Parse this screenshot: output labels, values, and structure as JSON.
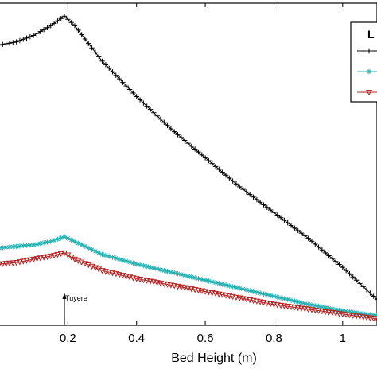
{
  "chart_data": {
    "type": "line",
    "xlabel": "Bed Height (m)",
    "ylabel": "",
    "xlim": [
      0.0,
      1.1
    ],
    "ylim": [
      0.0,
      1.0
    ],
    "x_ticks": [
      0.2,
      0.4,
      0.6,
      0.8,
      1.0
    ],
    "x_tick_labels": [
      "0.2",
      "0.4",
      "0.6",
      "0.8",
      "1"
    ],
    "grid": false,
    "legend": {
      "title": "L",
      "placement": "top-right"
    },
    "annotation": {
      "text": "Tuyere",
      "x": 0.19
    },
    "series": [
      {
        "color": "#000000",
        "marker": "plus",
        "x": [
          0.0,
          0.05,
          0.1,
          0.15,
          0.19,
          0.22,
          0.3,
          0.4,
          0.5,
          0.6,
          0.7,
          0.8,
          0.9,
          1.0,
          1.06,
          1.1
        ],
        "y": [
          0.87,
          0.88,
          0.9,
          0.93,
          0.96,
          0.93,
          0.82,
          0.71,
          0.61,
          0.52,
          0.43,
          0.35,
          0.27,
          0.18,
          0.12,
          0.08
        ]
      },
      {
        "color": "#2ab3b3",
        "marker": "star",
        "x": [
          0.0,
          0.05,
          0.1,
          0.15,
          0.19,
          0.22,
          0.3,
          0.4,
          0.5,
          0.6,
          0.7,
          0.8,
          0.9,
          1.0,
          1.1
        ],
        "y": [
          0.24,
          0.245,
          0.25,
          0.26,
          0.275,
          0.26,
          0.22,
          0.19,
          0.165,
          0.14,
          0.115,
          0.09,
          0.065,
          0.045,
          0.03
        ]
      },
      {
        "color": "#b32424",
        "marker": "triangle-down",
        "x": [
          0.0,
          0.05,
          0.1,
          0.15,
          0.19,
          0.22,
          0.3,
          0.4,
          0.5,
          0.6,
          0.7,
          0.8,
          0.9,
          1.0,
          1.1
        ],
        "y": [
          0.19,
          0.195,
          0.205,
          0.215,
          0.225,
          0.205,
          0.17,
          0.145,
          0.125,
          0.105,
          0.085,
          0.065,
          0.05,
          0.035,
          0.02
        ]
      }
    ]
  }
}
